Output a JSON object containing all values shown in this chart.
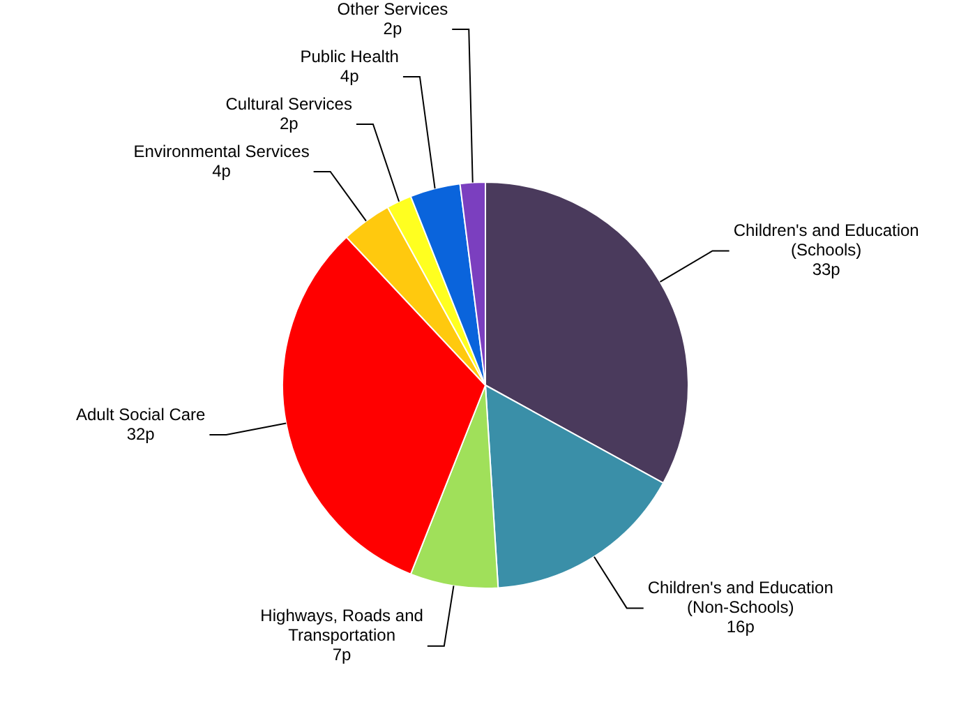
{
  "chart_data": {
    "type": "pie",
    "categories": [
      "Children's and Education (Schools)",
      "Children's and Education (Non-Schools)",
      "Highways, Roads and Transportation",
      "Adult Social Care",
      "Environmental Services",
      "Cultural Services",
      "Public Health",
      "Other Services"
    ],
    "values": [
      33,
      16,
      7,
      32,
      4,
      2,
      4,
      2
    ],
    "value_labels": [
      "33p",
      "16p",
      "7p",
      "32p",
      "4p",
      "2p",
      "4p",
      "2p"
    ],
    "colors": [
      "#4a3a5c",
      "#3a8fa8",
      "#a0e05a",
      "#ff0000",
      "#ffc90e",
      "#ffff20",
      "#0a64dc",
      "#7b3fbf"
    ],
    "legend": false
  }
}
